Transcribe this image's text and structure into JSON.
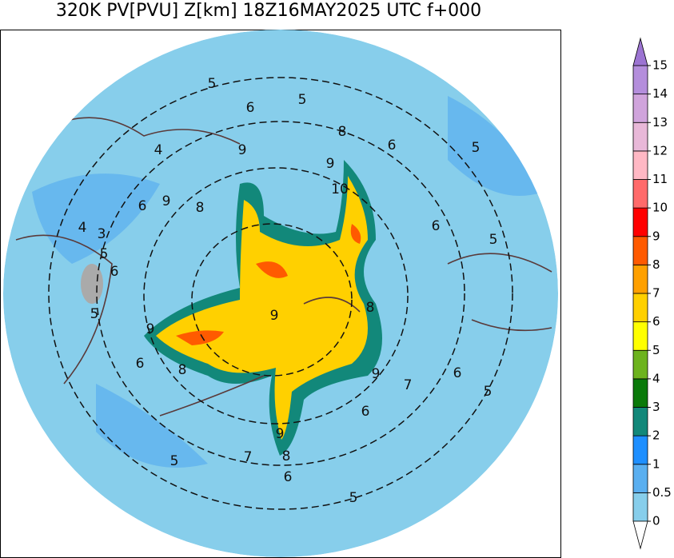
{
  "map": {
    "title": "320K PV[PVU] Z[km] 18Z16MAY2025 UTC f+000",
    "contour_labels": [
      5,
      6,
      5,
      8,
      6,
      5,
      4,
      9,
      9,
      10,
      6,
      5,
      8,
      9,
      6,
      4,
      3,
      5,
      6,
      5,
      9,
      9,
      8,
      6,
      8,
      9,
      6,
      5,
      7,
      6,
      9,
      8,
      7,
      5,
      6,
      5
    ],
    "colorbar": {
      "levels": [
        0,
        0.5,
        1,
        2,
        3,
        4,
        5,
        6,
        7,
        8,
        9,
        10,
        11,
        12,
        13,
        14,
        15
      ],
      "colors": [
        "#87ceeb",
        "#5aaff0",
        "#1e8fff",
        "#12887a",
        "#0a7a0a",
        "#6db31e",
        "#ffff00",
        "#ffd000",
        "#ffa000",
        "#ff5a00",
        "#ff0000",
        "#ff6a6a",
        "#ffb8c4",
        "#e8b8d8",
        "#d0a4dc",
        "#b48edc"
      ],
      "under_color": "#ffffff",
      "over_color": "#9c74d2"
    }
  }
}
